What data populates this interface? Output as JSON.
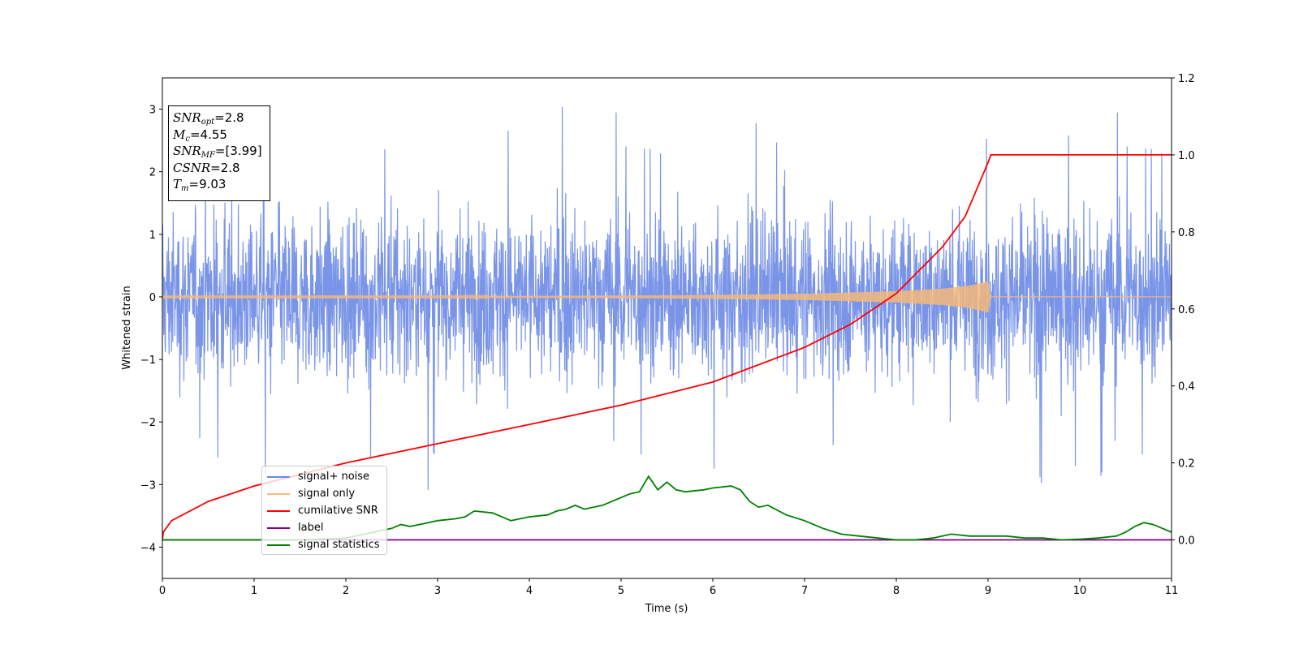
{
  "chart_data": {
    "type": "line",
    "title": "",
    "xlabel": "Time (s)",
    "ylabel": "Whitened strain",
    "xlim": [
      0,
      11
    ],
    "ylim": [
      -4.5,
      3.5
    ],
    "y2lim": [
      -0.1,
      1.2
    ],
    "x_ticks": [
      "0",
      "1",
      "2",
      "3",
      "4",
      "5",
      "6",
      "7",
      "8",
      "9",
      "10",
      "11"
    ],
    "y_ticks": [
      "−4",
      "−3",
      "−2",
      "−1",
      "0",
      "1",
      "2",
      "3"
    ],
    "y2_ticks": [
      "0.0",
      "0.2",
      "0.4",
      "0.6",
      "0.8",
      "1.0",
      "1.2"
    ],
    "grid": false,
    "legend_position": "lower-left",
    "info_box": {
      "snr_opt_value": "=2.8",
      "mc_value": "=4.55",
      "snr_mf_value": "=[3.99]",
      "csnr_value": "=2.8",
      "tm_value": "=9.03"
    },
    "series": [
      {
        "name": "signal+ noise",
        "color": "#6b89e5",
        "axis": "left",
        "kind": "noise",
        "envelope": {
          "x": [
            0,
            11
          ],
          "typical_amplitude": 1.5,
          "peak_max": 3.2,
          "peak_min": -4.15
        }
      },
      {
        "name": "signal only",
        "color": "#f5b97a",
        "axis": "left",
        "kind": "chirp",
        "x": [
          0,
          3,
          5,
          6,
          7,
          8,
          8.5,
          8.8,
          9.0,
          9.03,
          11
        ],
        "amplitude": [
          0.01,
          0.01,
          0.02,
          0.03,
          0.05,
          0.09,
          0.13,
          0.18,
          0.25,
          0.0,
          0.0
        ]
      },
      {
        "name": "cumilative SNR",
        "color": "#ff0000",
        "axis": "right",
        "x": [
          0.0,
          0.01,
          0.1,
          0.5,
          1.0,
          2.0,
          3.0,
          4.0,
          5.0,
          6.0,
          7.0,
          7.5,
          8.0,
          8.5,
          8.75,
          9.0,
          9.03,
          11.0
        ],
        "y": [
          0.0,
          0.02,
          0.05,
          0.1,
          0.14,
          0.2,
          0.25,
          0.3,
          0.35,
          0.41,
          0.5,
          0.56,
          0.64,
          0.76,
          0.84,
          0.98,
          1.0,
          1.0
        ]
      },
      {
        "name": "label",
        "color": "#800080",
        "axis": "right",
        "x": [
          0,
          11
        ],
        "y": [
          0.0,
          0.0
        ]
      },
      {
        "name": "signal statistics",
        "color": "#008000",
        "axis": "right",
        "x": [
          0,
          1,
          1.5,
          2.0,
          2.3,
          2.5,
          2.6,
          2.7,
          2.8,
          2.9,
          3.0,
          3.2,
          3.3,
          3.4,
          3.6,
          3.7,
          3.8,
          4.0,
          4.2,
          4.3,
          4.4,
          4.5,
          4.6,
          4.8,
          5.0,
          5.1,
          5.2,
          5.3,
          5.4,
          5.5,
          5.6,
          5.7,
          5.9,
          6.0,
          6.2,
          6.3,
          6.4,
          6.5,
          6.6,
          6.8,
          7.0,
          7.2,
          7.4,
          7.6,
          7.8,
          8.0,
          8.2,
          8.4,
          8.6,
          8.8,
          9.0,
          9.2,
          9.4,
          9.6,
          9.8,
          10.0,
          10.2,
          10.4,
          10.5,
          10.6,
          10.7,
          10.8,
          10.9,
          11.0
        ],
        "y": [
          0.0,
          0.0,
          0.0,
          0.005,
          0.02,
          0.03,
          0.04,
          0.035,
          0.04,
          0.045,
          0.05,
          0.055,
          0.06,
          0.075,
          0.07,
          0.06,
          0.05,
          0.06,
          0.065,
          0.075,
          0.08,
          0.09,
          0.08,
          0.09,
          0.11,
          0.12,
          0.125,
          0.165,
          0.13,
          0.15,
          0.13,
          0.125,
          0.13,
          0.135,
          0.14,
          0.13,
          0.1,
          0.085,
          0.09,
          0.065,
          0.05,
          0.03,
          0.015,
          0.01,
          0.005,
          0.0,
          0.0,
          0.005,
          0.015,
          0.01,
          0.01,
          0.01,
          0.005,
          0.005,
          0.0,
          0.002,
          0.005,
          0.01,
          0.02,
          0.035,
          0.045,
          0.04,
          0.03,
          0.02
        ]
      }
    ]
  }
}
